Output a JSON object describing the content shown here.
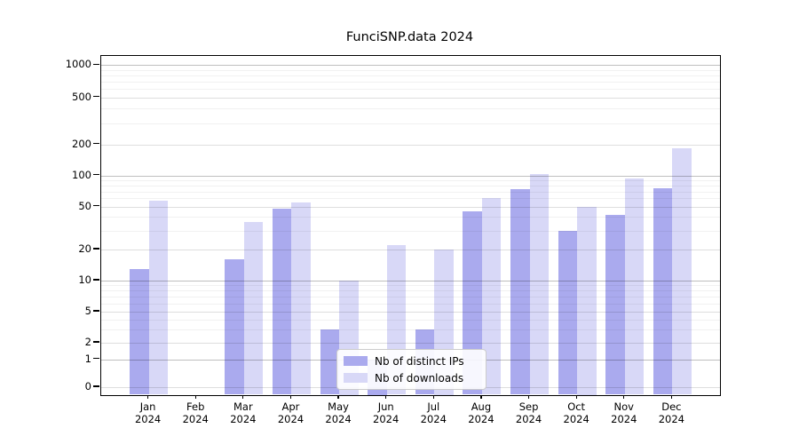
{
  "title": "FunciSNP.data 2024",
  "chart_data": {
    "type": "bar",
    "title": "FunciSNP.data 2024",
    "categories": [
      "Jan",
      "Feb",
      "Mar",
      "Apr",
      "May",
      "Jun",
      "Jul",
      "Aug",
      "Sep",
      "Oct",
      "Nov",
      "Dec"
    ],
    "category_year": "2024",
    "series": [
      {
        "name": "Nb of distinct IPs",
        "color": "#aaaaee",
        "values": [
          13,
          0,
          16,
          48,
          3,
          1,
          3,
          45,
          74,
          30,
          42,
          75
        ]
      },
      {
        "name": "Nb of downloads",
        "color": "#d8d8f7",
        "values": [
          57,
          0,
          36,
          55,
          10,
          22,
          20,
          60,
          103,
          50,
          94,
          184
        ]
      }
    ],
    "ylabel": "",
    "xlabel": "",
    "y_scale": "log-like (0,1,2,5,10,20,50,100,200,500,1000)",
    "y_tick_values": [
      0,
      1,
      2,
      5,
      10,
      20,
      50,
      100,
      200,
      500,
      1000
    ],
    "y_tick_labels": [
      "0",
      "1",
      "2",
      "5",
      "10",
      "20",
      "50",
      "100",
      "200",
      "500",
      "1000"
    ],
    "y_minor_gridlines": [
      3,
      4,
      6,
      7,
      8,
      9,
      30,
      40,
      60,
      70,
      80,
      90,
      300,
      400,
      600,
      700,
      800,
      900
    ],
    "grid": true,
    "legend_position": "lower center"
  },
  "legend": {
    "items": [
      {
        "label": "Nb of distinct IPs",
        "color": "#aaaaee"
      },
      {
        "label": "Nb of downloads",
        "color": "#d8d8f7"
      }
    ]
  }
}
